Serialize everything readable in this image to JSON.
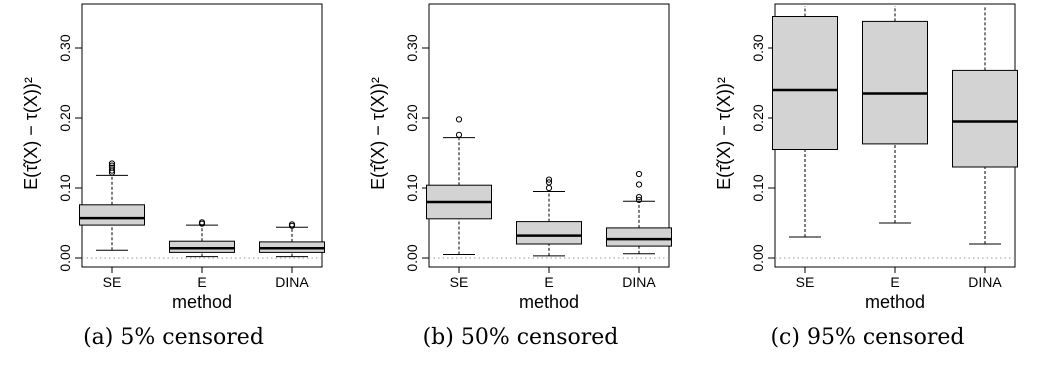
{
  "chart_data": [
    {
      "type": "box",
      "caption": "(a) 5% censored",
      "xlabel": "method",
      "ylabel": "E(τ̂(X) − τ(X))²",
      "categories": [
        "SE",
        "E",
        "DINA"
      ],
      "ylim": [
        0,
        0.36
      ],
      "yticks": [
        "0.00",
        "0.10",
        "0.20",
        "0.30"
      ],
      "ytick_values": [
        0,
        0.1,
        0.2,
        0.3
      ],
      "reference_line": 0,
      "boxes": [
        {
          "category": "SE",
          "whisker_low": 0.011,
          "q1": 0.047,
          "median": 0.057,
          "q3": 0.076,
          "whisker_high": 0.118,
          "outliers": [
            0.122,
            0.125,
            0.129,
            0.132,
            0.135
          ]
        },
        {
          "category": "E",
          "whisker_low": 0.002,
          "q1": 0.008,
          "median": 0.014,
          "q3": 0.024,
          "whisker_high": 0.047,
          "outliers": [
            0.049,
            0.051
          ]
        },
        {
          "category": "DINA",
          "whisker_low": 0.002,
          "q1": 0.008,
          "median": 0.014,
          "q3": 0.023,
          "whisker_high": 0.044,
          "outliers": [
            0.046,
            0.048
          ]
        }
      ]
    },
    {
      "type": "box",
      "caption": "(b) 50% censored",
      "xlabel": "method",
      "ylabel": "E(τ̂(X) − τ(X))²",
      "categories": [
        "SE",
        "E",
        "DINA"
      ],
      "ylim": [
        0,
        0.36
      ],
      "yticks": [
        "0.00",
        "0.10",
        "0.20",
        "0.30"
      ],
      "ytick_values": [
        0,
        0.1,
        0.2,
        0.3
      ],
      "reference_line": 0,
      "boxes": [
        {
          "category": "SE",
          "whisker_low": 0.005,
          "q1": 0.056,
          "median": 0.08,
          "q3": 0.104,
          "whisker_high": 0.172,
          "outliers": [
            0.176,
            0.198
          ]
        },
        {
          "category": "E",
          "whisker_low": 0.003,
          "q1": 0.02,
          "median": 0.032,
          "q3": 0.052,
          "whisker_high": 0.095,
          "outliers": [
            0.1,
            0.108,
            0.112
          ]
        },
        {
          "category": "DINA",
          "whisker_low": 0.006,
          "q1": 0.017,
          "median": 0.027,
          "q3": 0.043,
          "whisker_high": 0.081,
          "outliers": [
            0.083,
            0.087,
            0.105,
            0.12
          ]
        }
      ]
    },
    {
      "type": "box",
      "caption": "(c) 95% censored",
      "xlabel": "method",
      "ylabel": "E(τ̂(X) − τ(X))²",
      "categories": [
        "SE",
        "E",
        "DINA"
      ],
      "ylim": [
        0,
        0.36
      ],
      "yticks": [
        "0.00",
        "0.10",
        "0.20",
        "0.30"
      ],
      "ytick_values": [
        0,
        0.1,
        0.2,
        0.3
      ],
      "reference_line": 0,
      "boxes": [
        {
          "category": "SE",
          "whisker_low": 0.03,
          "q1": 0.155,
          "median": 0.24,
          "q3": 0.345,
          "whisker_high": 0.36,
          "outliers": []
        },
        {
          "category": "E",
          "whisker_low": 0.05,
          "q1": 0.163,
          "median": 0.235,
          "q3": 0.338,
          "whisker_high": 0.36,
          "outliers": []
        },
        {
          "category": "DINA",
          "whisker_low": 0.02,
          "q1": 0.13,
          "median": 0.195,
          "q3": 0.268,
          "whisker_high": 0.36,
          "outliers": []
        }
      ]
    }
  ]
}
